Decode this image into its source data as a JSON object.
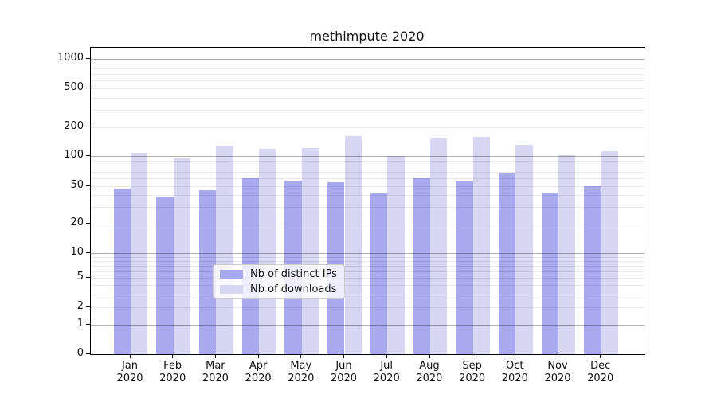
{
  "chart_data": {
    "type": "bar",
    "title": "methimpute 2020",
    "categories": [
      "Jan 2020",
      "Feb 2020",
      "Mar 2020",
      "Apr 2020",
      "May 2020",
      "Jun 2020",
      "Jul 2020",
      "Aug 2020",
      "Sep 2020",
      "Oct 2020",
      "Nov 2020",
      "Dec 2020"
    ],
    "series": [
      {
        "name": "Nb of distinct IPs",
        "color": "#a9a9ef",
        "values": [
          47,
          38,
          45,
          61,
          57,
          55,
          42,
          61,
          56,
          68,
          43,
          50
        ]
      },
      {
        "name": "Nb of downloads",
        "color": "#d7d7f4",
        "values": [
          109,
          94,
          129,
          120,
          122,
          162,
          100,
          155,
          160,
          132,
          102,
          112
        ]
      }
    ],
    "yscale": "log",
    "y_ticks": [
      0,
      1,
      2,
      5,
      10,
      20,
      50,
      100,
      200,
      500,
      1000
    ],
    "ylim": [
      0,
      1300
    ],
    "xlabel": "",
    "ylabel": "",
    "grid": "on",
    "legend_position": "lower center",
    "colors": {
      "bar_distinct_ips": "#a9a9ef",
      "bar_downloads": "#d7d7f4",
      "major_grid": "#b0b0b0",
      "minor_grid": "#e8e8e8"
    }
  }
}
